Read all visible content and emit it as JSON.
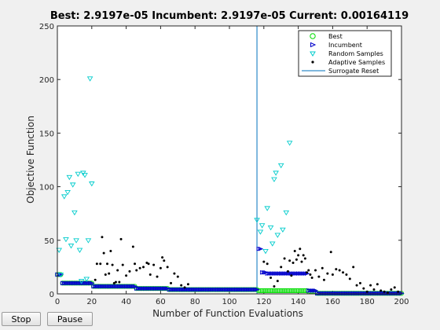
{
  "chart_data": {
    "type": "scatter",
    "title": "Best: 2.9197e-05 Incumbent: 2.9197e-05 Current: 0.00164119",
    "xlabel": "Number of Function Evaluations",
    "ylabel": "Objective Function",
    "xlim": [
      0,
      200
    ],
    "ylim": [
      0,
      250
    ],
    "xticks": [
      0,
      20,
      40,
      60,
      80,
      100,
      120,
      140,
      160,
      180,
      200
    ],
    "yticks": [
      0,
      50,
      100,
      150,
      200,
      250
    ],
    "legend_position": "top-right",
    "grid": false,
    "surrogate_reset_x": 116,
    "series": [
      {
        "name": "Best",
        "marker": "circle",
        "color": "#00dd00",
        "runs": [
          {
            "x_start": 0,
            "x_end": 2,
            "y": 18
          },
          {
            "x_start": 3,
            "x_end": 20,
            "y": 10
          },
          {
            "x_start": 21,
            "x_end": 45,
            "y": 7
          },
          {
            "x_start": 46,
            "x_end": 64,
            "y": 5
          },
          {
            "x_start": 65,
            "x_end": 116,
            "y": 4
          },
          {
            "x_start": 117,
            "x_end": 145,
            "y": 3
          },
          {
            "x_start": 146,
            "x_end": 150,
            "y": 2
          },
          {
            "x_start": 151,
            "x_end": 200,
            "y": 0.5
          }
        ]
      },
      {
        "name": "Incumbent",
        "marker": "triangle-right",
        "color": "#0000cc",
        "runs": [
          {
            "x_start": 0,
            "x_end": 2,
            "y": 18
          },
          {
            "x_start": 3,
            "x_end": 20,
            "y": 10
          },
          {
            "x_start": 21,
            "x_end": 45,
            "y": 7
          },
          {
            "x_start": 46,
            "x_end": 64,
            "y": 5
          },
          {
            "x_start": 65,
            "x_end": 116,
            "y": 4
          },
          {
            "x_start": 117,
            "x_end": 118,
            "y": 42
          },
          {
            "x_start": 119,
            "x_end": 121,
            "y": 20
          },
          {
            "x_start": 122,
            "x_end": 145,
            "y": 19
          },
          {
            "x_start": 146,
            "x_end": 150,
            "y": 3
          },
          {
            "x_start": 151,
            "x_end": 200,
            "y": 0.5
          }
        ]
      },
      {
        "name": "Random Samples",
        "marker": "triangle-down",
        "color": "#00cccc",
        "x": [
          1,
          2,
          4,
          5,
          6,
          7,
          8,
          9,
          10,
          11,
          12,
          13,
          14,
          15,
          16,
          17,
          18,
          19,
          20,
          116,
          118,
          119,
          121,
          122,
          124,
          125,
          126,
          127,
          128,
          130,
          131,
          133,
          135
        ],
        "y": [
          41,
          18,
          91,
          51,
          95,
          109,
          45,
          102,
          76,
          50,
          112,
          41,
          12,
          113,
          111,
          14,
          50,
          201,
          103,
          69,
          58,
          64,
          40,
          80,
          62,
          47,
          107,
          113,
          55,
          120,
          60,
          76,
          141
        ]
      },
      {
        "name": "Adaptive Samples",
        "marker": "dot",
        "color": "#000000",
        "x": [
          22,
          23,
          25,
          26,
          27,
          28,
          29,
          30,
          31,
          32,
          33,
          34,
          35,
          36,
          37,
          38,
          40,
          42,
          44,
          45,
          46,
          48,
          50,
          52,
          53,
          54,
          56,
          58,
          60,
          61,
          62,
          64,
          66,
          68,
          70,
          72,
          74,
          76,
          120,
          122,
          124,
          126,
          128,
          130,
          132,
          134,
          135,
          136,
          137,
          138,
          139,
          140,
          141,
          142,
          143,
          144,
          145,
          146,
          147,
          148,
          150,
          152,
          154,
          155,
          157,
          159,
          160,
          162,
          164,
          166,
          168,
          170,
          172,
          174,
          176,
          178,
          180,
          182,
          184,
          186,
          188,
          190,
          192,
          194,
          196,
          198
        ],
        "y": [
          13,
          28,
          28,
          53,
          38,
          18,
          28,
          19,
          40,
          27,
          10,
          11,
          22,
          11,
          51,
          27,
          17,
          21,
          44,
          28,
          22,
          24,
          25,
          29,
          28,
          18,
          27,
          16,
          24,
          34,
          31,
          25,
          10,
          19,
          16,
          8,
          6,
          9,
          30,
          28,
          15,
          7,
          12,
          25,
          33,
          21,
          31,
          17,
          29,
          40,
          32,
          36,
          42,
          30,
          36,
          33,
          20,
          22,
          18,
          15,
          22,
          16,
          24,
          13,
          19,
          39,
          18,
          23,
          22,
          20,
          18,
          14,
          25,
          8,
          10,
          5,
          2,
          8,
          4,
          9,
          3,
          2,
          1,
          4,
          6,
          2
        ]
      }
    ]
  },
  "legend": {
    "best": "Best",
    "incumbent": "Incumbent",
    "random": "Random Samples",
    "adaptive": "Adaptive Samples",
    "reset": "Surrogate Reset"
  },
  "controls": {
    "stop_label": "Stop",
    "pause_label": "Pause"
  },
  "colors": {
    "surrogate_reset": "#0072bd",
    "axes": "#262626"
  }
}
